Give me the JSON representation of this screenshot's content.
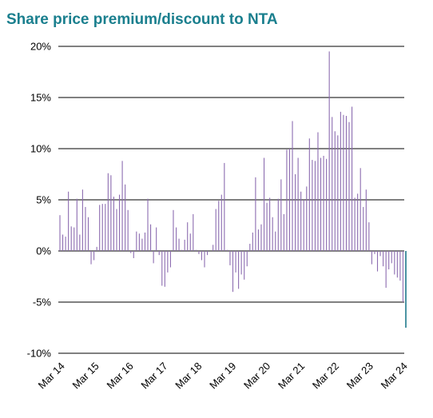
{
  "chart_data": {
    "type": "bar",
    "title": "Share price premium/discount to NTA",
    "xlabel": "",
    "ylabel": "",
    "ylim": [
      -10,
      20
    ],
    "y_ticks": [
      "20%",
      "15%",
      "10%",
      "5%",
      "0%",
      "-5%",
      "-10%"
    ],
    "x_ticks": [
      "Mar 14",
      "Mar 15",
      "Mar 16",
      "Mar 17",
      "Mar 18",
      "Mar 19",
      "Mar 20",
      "Mar 21",
      "Mar 22",
      "Mar 23",
      "Mar 24"
    ],
    "grid": true,
    "bar_color": "#8c6cb0",
    "highlight_color": "#1f7a8c",
    "values": [
      3.5,
      1.6,
      1.4,
      5.8,
      2.4,
      2.3,
      5.1,
      1.6,
      6.0,
      4.3,
      3.3,
      -1.3,
      -0.9,
      0.4,
      4.5,
      4.6,
      4.6,
      7.6,
      7.4,
      5.3,
      4.1,
      5.5,
      8.8,
      6.5,
      4.0,
      -0.2,
      -0.7,
      1.9,
      1.7,
      1.2,
      1.8,
      5.1,
      2.6,
      -1.2,
      2.3,
      -0.4,
      -3.4,
      -3.5,
      -2.1,
      -1.6,
      4.0,
      2.3,
      1.2,
      0.1,
      1.1,
      2.8,
      1.7,
      3.6,
      0.1,
      -0.3,
      -0.9,
      -1.6,
      -0.4,
      0.0,
      0.6,
      4.1,
      4.9,
      5.5,
      8.6,
      0.1,
      -1.4,
      -4.0,
      -2.1,
      -3.7,
      -2.3,
      -2.8,
      -1.5,
      0.7,
      1.8,
      7.2,
      2.1,
      2.6,
      9.1,
      4.7,
      5.2,
      3.3,
      1.9,
      5.1,
      7.0,
      3.6,
      9.9,
      10.0,
      12.7,
      7.5,
      9.1,
      5.8,
      5.0,
      6.3,
      11.0,
      8.9,
      8.8,
      11.6,
      9.1,
      9.3,
      9.0,
      19.5,
      13.1,
      11.7,
      11.3,
      13.6,
      13.3,
      13.2,
      12.6,
      14.1,
      5.2,
      5.6,
      8.1,
      4.3,
      6.0,
      2.8,
      -1.3,
      -0.3,
      -2.0,
      -0.5,
      -1.5,
      -3.6,
      -1.8,
      -1.2,
      -2.3,
      -2.6,
      -2.9,
      -5.0,
      -7.5
    ]
  }
}
